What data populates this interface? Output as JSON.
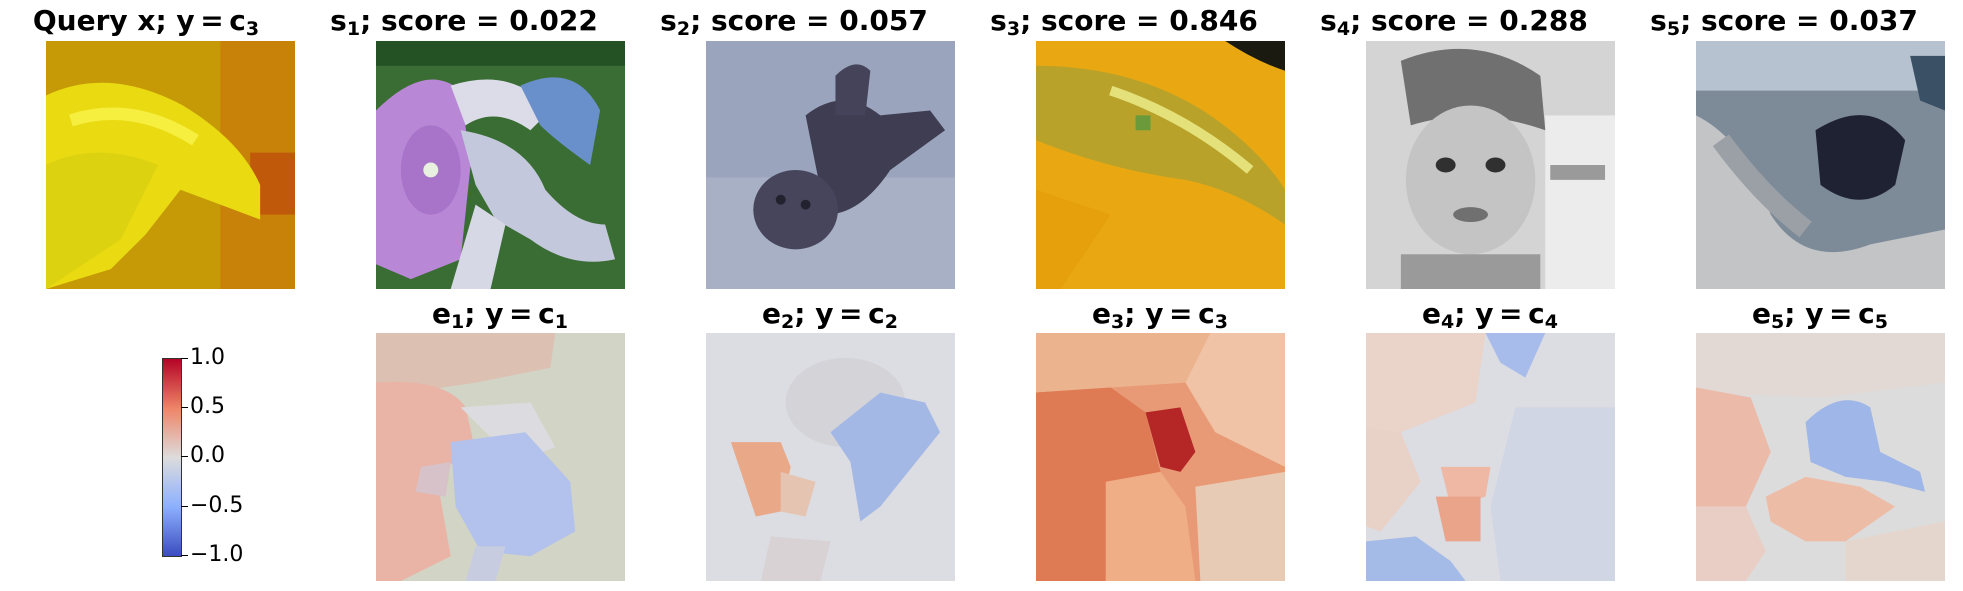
{
  "query": {
    "title_main": "Query x; y = c",
    "title_sub": "3"
  },
  "samples": [
    {
      "name": "s",
      "sub": "1",
      "title_rest": "; score = 0.022"
    },
    {
      "name": "s",
      "sub": "2",
      "title_rest": "; score = 0.057"
    },
    {
      "name": "s",
      "sub": "3",
      "title_rest": "; score = 0.846"
    },
    {
      "name": "s",
      "sub": "4",
      "title_rest": "; score = 0.288"
    },
    {
      "name": "s",
      "sub": "5",
      "title_rest": "; score = 0.037"
    }
  ],
  "explanations": [
    {
      "name": "e",
      "sub": "1",
      "mid": "; y = c",
      "csub": "1"
    },
    {
      "name": "e",
      "sub": "2",
      "mid": "; y = c",
      "csub": "2"
    },
    {
      "name": "e",
      "sub": "3",
      "mid": "; y = c",
      "csub": "3"
    },
    {
      "name": "e",
      "sub": "4",
      "mid": "; y = c",
      "csub": "4"
    },
    {
      "name": "e",
      "sub": "5",
      "mid": "; y = c",
      "csub": "5"
    }
  ],
  "colorbar": {
    "colormap": "coolwarm",
    "ticks": [
      "1.0",
      "0.5",
      "0.0",
      "−0.5",
      "−1.0"
    ]
  }
}
